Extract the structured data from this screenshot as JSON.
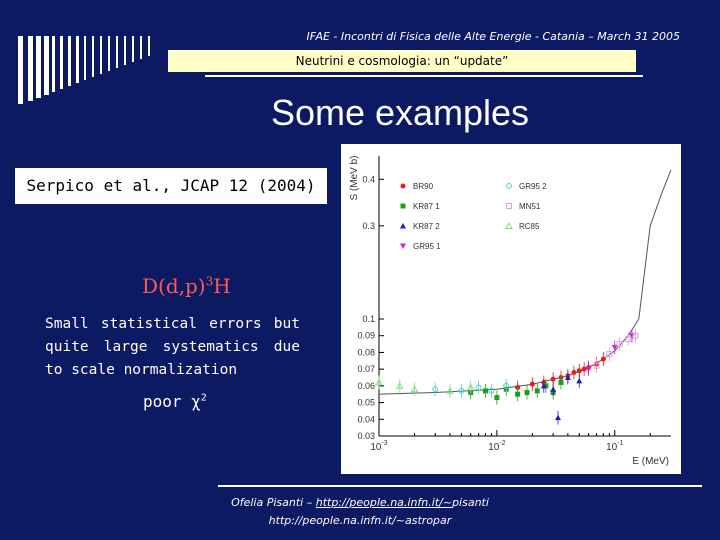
{
  "header": {
    "conference": "IFAE - Incontri di Fisica delle Alte Energie - Catania – March 31 2005",
    "subtitle": "Neutrini e cosmologia: un “update”"
  },
  "slide": {
    "title": "Some examples",
    "citation": "Serpico et al., JCAP 12 (2004)",
    "reaction_prefix": "D(d,p)",
    "reaction_sup": "3",
    "reaction_suffix": "H",
    "description": "Small statistical errors but quite large systematics due to scale normalization",
    "chi_label": "poor χ",
    "chi_sup": "2"
  },
  "footer": {
    "author_prefix": "Ofelia Pisanti – ",
    "link1": "http://people.na.infn.it/~",
    "link1_suffix": "pisanti",
    "link2": "http://people.na.infn.it/~astropar"
  },
  "colors": {
    "background": "#0c1a63",
    "subtitle_box": "#ffffc8",
    "reaction_text": "#ff5a55"
  },
  "chart_data": {
    "type": "scatter",
    "xlabel": "E (MeV)",
    "ylabel": "S (MeV b)",
    "x_scale": "log",
    "xlim": [
      0.001,
      0.3
    ],
    "ylim": [
      0.03,
      0.45
    ],
    "x_ticks": [
      {
        "v": 0.001,
        "base": "10",
        "exp": "-3"
      },
      {
        "v": 0.01,
        "base": "10",
        "exp": "-2"
      },
      {
        "v": 0.1,
        "base": "10",
        "exp": "-1"
      }
    ],
    "y_ticks_lower": [
      "0.03",
      "0.04",
      "0.05",
      "0.06",
      "0.07",
      "0.08",
      "0.09",
      "0.1"
    ],
    "y_ticks_upper": [
      "0.3",
      "0.4"
    ],
    "legend": [
      {
        "name": "BR90",
        "color": "#e02020",
        "marker": "circle"
      },
      {
        "name": "KR87 1",
        "color": "#18a018",
        "marker": "square"
      },
      {
        "name": "KR87 2",
        "color": "#2020c0",
        "marker": "triangle"
      },
      {
        "name": "GR95 1",
        "color": "#d020d0",
        "marker": "triangle-down"
      },
      {
        "name": "GR95 2",
        "color": "#50d0d0",
        "marker": "circle-open"
      },
      {
        "name": "MN51",
        "color": "#e0a0e0",
        "marker": "square-open"
      },
      {
        "name": "RC85",
        "color": "#80e080",
        "marker": "triangle-open"
      }
    ],
    "fit_curve": [
      [
        0.001,
        0.055
      ],
      [
        0.003,
        0.056
      ],
      [
        0.01,
        0.058
      ],
      [
        0.02,
        0.061
      ],
      [
        0.04,
        0.066
      ],
      [
        0.06,
        0.071
      ],
      [
        0.08,
        0.076
      ],
      [
        0.1,
        0.081
      ],
      [
        0.13,
        0.09
      ],
      [
        0.16,
        0.1
      ],
      [
        0.2,
        0.3
      ],
      [
        0.25,
        0.37
      ],
      [
        0.3,
        0.42
      ]
    ],
    "series": [
      {
        "name": "BR90",
        "color": "#e02020",
        "marker": "circle",
        "points": [
          [
            0.015,
            0.059
          ],
          [
            0.02,
            0.061
          ],
          [
            0.025,
            0.062
          ],
          [
            0.03,
            0.064
          ],
          [
            0.035,
            0.065
          ],
          [
            0.04,
            0.066
          ],
          [
            0.045,
            0.068
          ],
          [
            0.05,
            0.069
          ],
          [
            0.055,
            0.07
          ],
          [
            0.06,
            0.071
          ],
          [
            0.07,
            0.073
          ],
          [
            0.08,
            0.076
          ]
        ]
      },
      {
        "name": "KR87 1",
        "color": "#18a018",
        "marker": "square",
        "points": [
          [
            0.006,
            0.056
          ],
          [
            0.008,
            0.057
          ],
          [
            0.01,
            0.053
          ],
          [
            0.012,
            0.058
          ],
          [
            0.015,
            0.055
          ],
          [
            0.018,
            0.056
          ],
          [
            0.022,
            0.057
          ],
          [
            0.026,
            0.06
          ],
          [
            0.03,
            0.056
          ],
          [
            0.035,
            0.062
          ]
        ]
      },
      {
        "name": "KR87 2",
        "color": "#2020c0",
        "marker": "triangle",
        "points": [
          [
            0.025,
            0.06
          ],
          [
            0.03,
            0.058
          ],
          [
            0.033,
            0.041
          ],
          [
            0.04,
            0.065
          ],
          [
            0.05,
            0.063
          ]
        ]
      },
      {
        "name": "GR95 1",
        "color": "#d020d0",
        "marker": "triangle-down",
        "points": [
          [
            0.06,
            0.07
          ],
          [
            0.1,
            0.083
          ],
          [
            0.14,
            0.09
          ]
        ]
      },
      {
        "name": "GR95 2",
        "color": "#50d0d0",
        "marker": "circle-open",
        "points": [
          [
            0.003,
            0.058
          ],
          [
            0.005,
            0.057
          ],
          [
            0.007,
            0.059
          ],
          [
            0.009,
            0.057
          ],
          [
            0.012,
            0.06
          ]
        ]
      },
      {
        "name": "MN51",
        "color": "#e0a0e0",
        "marker": "square-open",
        "points": [
          [
            0.07,
            0.072
          ],
          [
            0.09,
            0.079
          ],
          [
            0.11,
            0.085
          ],
          [
            0.13,
            0.088
          ],
          [
            0.15,
            0.09
          ]
        ]
      },
      {
        "name": "RC85",
        "color": "#80e080",
        "marker": "triangle-open",
        "points": [
          [
            0.001,
            0.062
          ],
          [
            0.0015,
            0.06
          ],
          [
            0.002,
            0.058
          ],
          [
            0.004,
            0.057
          ],
          [
            0.006,
            0.059
          ]
        ]
      }
    ]
  }
}
